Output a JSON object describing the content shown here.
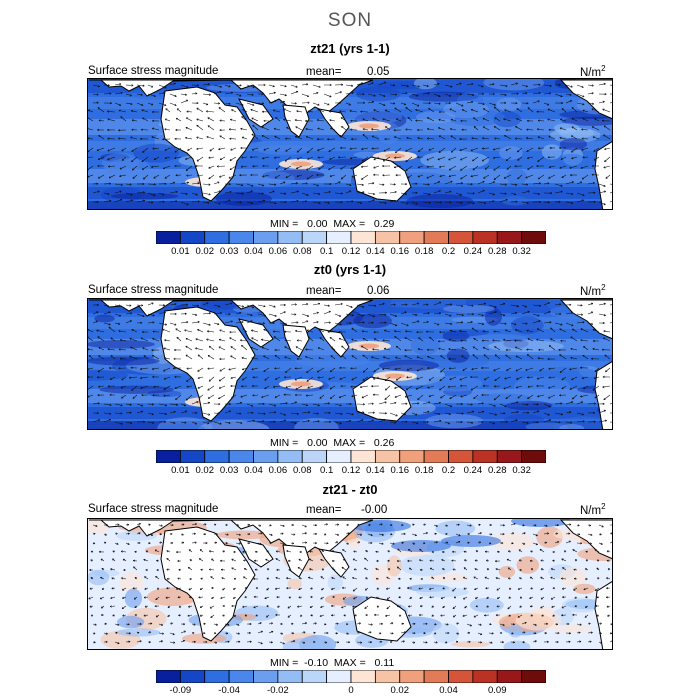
{
  "season": "SON",
  "panels": [
    {
      "title": "zt21 (yrs 1-1)",
      "field_label": "Surface stress magnitude",
      "mean_label": "mean=",
      "mean_value": "0.05",
      "units": "N/m",
      "units_sup": "2",
      "min_label": "MIN =",
      "min_value": "0.00",
      "max_label": "MAX =",
      "max_value": "0.29",
      "colorbar_colors": [
        "#08209e",
        "#1446c6",
        "#2f6ee0",
        "#4b86ea",
        "#6c9ef0",
        "#94bdf6",
        "#bcd6fa",
        "#e5efff",
        "#fde5d6",
        "#f7c3a7",
        "#f0a07c",
        "#e47b58",
        "#d4553a",
        "#bb3224",
        "#98171a",
        "#6e0b0b"
      ],
      "colorbar_ticks": [
        "0.01",
        "0.02",
        "0.03",
        "0.04",
        "0.06",
        "0.08",
        "0.1",
        "0.12",
        "0.14",
        "0.16",
        "0.18",
        "0.2",
        "0.24",
        "0.28",
        "0.32"
      ]
    },
    {
      "title": "zt0 (yrs 1-1)",
      "field_label": "Surface stress magnitude",
      "mean_label": "mean=",
      "mean_value": "0.06",
      "units": "N/m",
      "units_sup": "2",
      "min_label": "MIN =",
      "min_value": "0.00",
      "max_label": "MAX =",
      "max_value": "0.26",
      "colorbar_colors": [
        "#08209e",
        "#1446c6",
        "#2f6ee0",
        "#4b86ea",
        "#6c9ef0",
        "#94bdf6",
        "#bcd6fa",
        "#e5efff",
        "#fde5d6",
        "#f7c3a7",
        "#f0a07c",
        "#e47b58",
        "#d4553a",
        "#bb3224",
        "#98171a",
        "#6e0b0b"
      ],
      "colorbar_ticks": [
        "0.01",
        "0.02",
        "0.03",
        "0.04",
        "0.06",
        "0.08",
        "0.1",
        "0.12",
        "0.14",
        "0.16",
        "0.18",
        "0.2",
        "0.24",
        "0.28",
        "0.32"
      ]
    },
    {
      "title": "zt21 - zt0",
      "field_label": "Surface stress magnitude",
      "mean_label": "mean=",
      "mean_value": "-0.00",
      "units": "N/m",
      "units_sup": "2",
      "min_label": "MIN =",
      "min_value": "-0.10",
      "max_label": "MAX =",
      "max_value": "0.11",
      "colorbar_colors": [
        "#08209e",
        "#1446c6",
        "#2f6ee0",
        "#4b86ea",
        "#6c9ef0",
        "#94bdf6",
        "#bcd6fa",
        "#e5efff",
        "#fde5d6",
        "#f7c3a7",
        "#f0a07c",
        "#e47b58",
        "#d4553a",
        "#bb3224",
        "#98171a",
        "#6e0b0b"
      ],
      "colorbar_ticks": [
        "-0.09",
        "",
        "-0.04",
        "",
        "-0.02",
        "",
        "",
        "0",
        "",
        "0.02",
        "",
        "0.04",
        "",
        "0.09",
        ""
      ]
    }
  ]
}
